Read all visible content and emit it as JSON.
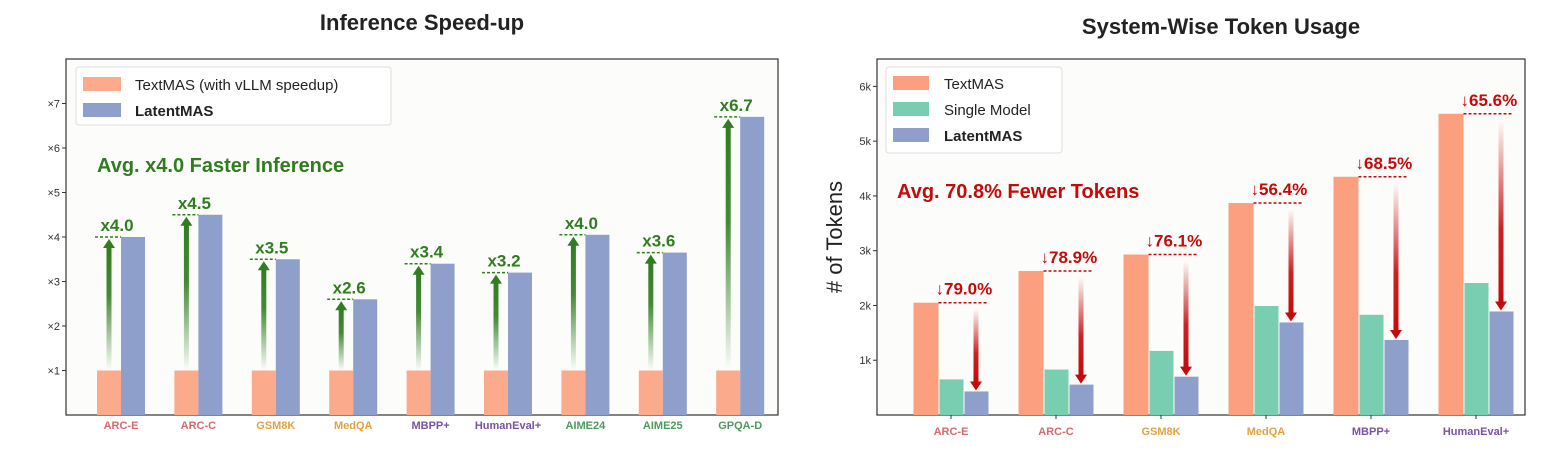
{
  "chart_data": [
    {
      "type": "bar",
      "title": "Inference Speed-up",
      "xlabel": "",
      "ylabel": "",
      "ylim": [
        0,
        8
      ],
      "yticks": [
        1,
        2,
        3,
        4,
        5,
        6,
        7
      ],
      "ytick_labels": [
        "×1",
        "×2",
        "×3",
        "×4",
        "×5",
        "×6",
        "×7"
      ],
      "categories": [
        "ARC-E",
        "ARC-C",
        "GSM8K",
        "MedQA",
        "MBPP+",
        "HumanEval+",
        "AIME24",
        "AIME25",
        "GPQA-D"
      ],
      "category_colors": [
        "#d46a6e",
        "#d46a6e",
        "#e3a23f",
        "#e3a23f",
        "#7a52a3",
        "#7a52a3",
        "#4e9a5c",
        "#4e9a5c",
        "#4e9a5c"
      ],
      "series": [
        {
          "name": "TextMAS (with vLLM speedup)",
          "color": "#fcaa8c",
          "values": [
            1,
            1,
            1,
            1,
            1,
            1,
            1,
            1,
            1
          ]
        },
        {
          "name": "LatentMAS",
          "color": "#8f9fcc",
          "bold": true,
          "values": [
            4.0,
            4.5,
            3.5,
            2.6,
            3.4,
            3.2,
            4.05,
            3.65,
            6.7
          ]
        }
      ],
      "annotations": [
        "x4.0",
        "x4.5",
        "x3.5",
        "x2.6",
        "x3.4",
        "x3.2",
        "x4.0",
        "x3.6",
        "x6.7"
      ],
      "annotation_color": "#2f7d1f",
      "summary": "Avg. x4.0 Faster Inference",
      "legend": "top-left"
    },
    {
      "type": "bar",
      "title": "System-Wise Token Usage",
      "xlabel": "",
      "ylabel": "# of Tokens",
      "ylim": [
        0,
        6500
      ],
      "yticks": [
        1000,
        2000,
        3000,
        4000,
        5000,
        6000
      ],
      "ytick_labels": [
        "1k",
        "2k",
        "3k",
        "4k",
        "5k",
        "6k"
      ],
      "categories": [
        "ARC-E",
        "ARC-C",
        "GSM8K",
        "MedQA",
        "MBPP+",
        "HumanEval+"
      ],
      "category_colors": [
        "#d46a6e",
        "#d46a6e",
        "#e3a23f",
        "#e3a23f",
        "#7a52a3",
        "#7a52a3"
      ],
      "series": [
        {
          "name": "TextMAS",
          "color": "#fc9f7e",
          "values": [
            2050,
            2630,
            2930,
            3870,
            4350,
            5500
          ]
        },
        {
          "name": "Single Model",
          "color": "#79ceb2",
          "values": [
            650,
            830,
            1170,
            1990,
            1830,
            2410
          ]
        },
        {
          "name": "LatentMAS",
          "color": "#8f9fcc",
          "bold": true,
          "values": [
            430,
            555,
            700,
            1690,
            1370,
            1890
          ]
        }
      ],
      "annotations": [
        "↓79.0%",
        "↓78.9%",
        "↓76.1%",
        "↓56.4%",
        "↓68.5%",
        "↓65.6%"
      ],
      "annotation_color": "#c40a0a",
      "summary": "Avg. 70.8% Fewer Tokens",
      "legend": "top-left"
    }
  ]
}
